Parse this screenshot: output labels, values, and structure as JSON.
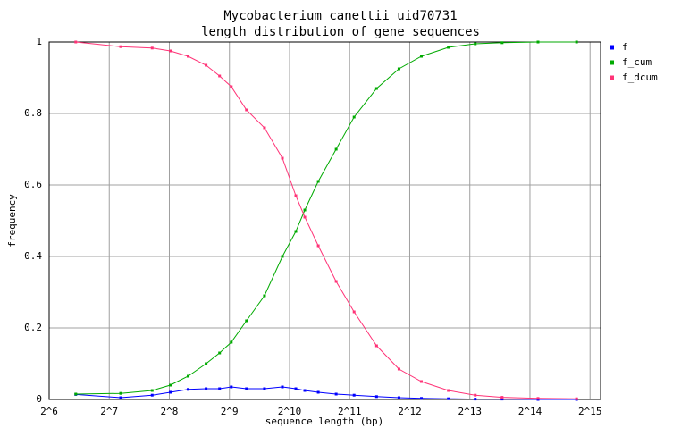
{
  "chart_data": {
    "type": "line",
    "title": "Mycobacterium canettii uid70731",
    "subtitle": "length distribution of gene sequences",
    "x_label": "sequence length (bp)",
    "y_label": "frequency",
    "xlog": true,
    "grid": true,
    "legend": "right",
    "xlim": [
      64,
      37000
    ],
    "ylim": [
      0,
      1
    ],
    "xticks": [
      {
        "value": 64,
        "label": "2^6"
      },
      {
        "value": 128,
        "label": "2^7"
      },
      {
        "value": 256,
        "label": "2^8"
      },
      {
        "value": 512,
        "label": "2^9"
      },
      {
        "value": 1024,
        "label": "2^10"
      },
      {
        "value": 2048,
        "label": "2^11"
      },
      {
        "value": 4096,
        "label": "2^12"
      },
      {
        "value": 8192,
        "label": "2^13"
      },
      {
        "value": 16384,
        "label": "2^14"
      },
      {
        "value": 32768,
        "label": "2^15"
      }
    ],
    "yticks": [
      0,
      0.2,
      0.4,
      0.6,
      0.8,
      1
    ],
    "x": [
      87,
      146,
      210,
      259,
      318,
      391,
      457,
      523,
      623,
      767,
      943,
      1101,
      1221,
      1426,
      1753,
      2156,
      2794,
      3618,
      4686,
      6393,
      8717,
      11885,
      17980,
      28050
    ],
    "series": [
      {
        "name": "f",
        "color": "#0000ff",
        "values": [
          0.014,
          0.005,
          0.012,
          0.02,
          0.028,
          0.03,
          0.03,
          0.035,
          0.03,
          0.03,
          0.035,
          0.03,
          0.025,
          0.02,
          0.015,
          0.012,
          0.008,
          0.005,
          0.003,
          0.002,
          0.001,
          0.001,
          0,
          0
        ]
      },
      {
        "name": "f_cum",
        "color": "#00aa00",
        "values": [
          0.015,
          0.017,
          0.025,
          0.04,
          0.065,
          0.1,
          0.13,
          0.16,
          0.22,
          0.29,
          0.4,
          0.47,
          0.53,
          0.61,
          0.7,
          0.79,
          0.87,
          0.925,
          0.96,
          0.985,
          0.995,
          0.998,
          1,
          1
        ]
      },
      {
        "name": "f_dcum",
        "color": "#ff3377",
        "values": [
          1,
          0.987,
          0.983,
          0.975,
          0.96,
          0.935,
          0.905,
          0.875,
          0.81,
          0.76,
          0.675,
          0.57,
          0.51,
          0.43,
          0.33,
          0.245,
          0.15,
          0.085,
          0.05,
          0.025,
          0.012,
          0.006,
          0.003,
          0.002
        ]
      }
    ]
  }
}
